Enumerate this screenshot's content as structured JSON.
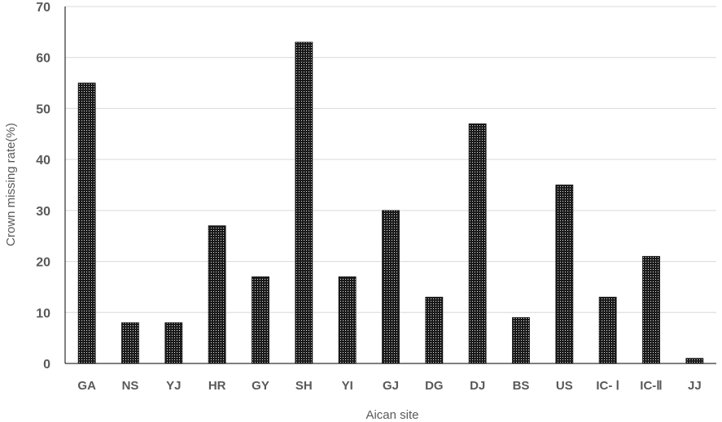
{
  "chart_data": {
    "type": "bar",
    "categories": [
      "GA",
      "NS",
      "YJ",
      "HR",
      "GY",
      "SH",
      "YI",
      "GJ",
      "DG",
      "DJ",
      "BS",
      "US",
      "IC- Ⅰ",
      "IC-Ⅱ",
      "JJ"
    ],
    "series": [
      {
        "values": [
          55,
          8,
          8,
          27,
          17,
          63,
          17,
          30,
          13,
          47,
          9,
          35,
          13,
          21,
          1
        ]
      }
    ],
    "xlabel": "Aican site",
    "ylabel": "Crown missing rate(%)",
    "ylim": [
      0,
      70
    ],
    "yticks": [
      0,
      10,
      20,
      30,
      40,
      50,
      60,
      70
    ],
    "grid": true,
    "legend": "none",
    "colors": {
      "bar_fill": "#222222",
      "bar_pattern_dot": "#ffffff",
      "grid": "#d9d9d9",
      "axis": "#000000",
      "text": "#595959"
    }
  }
}
